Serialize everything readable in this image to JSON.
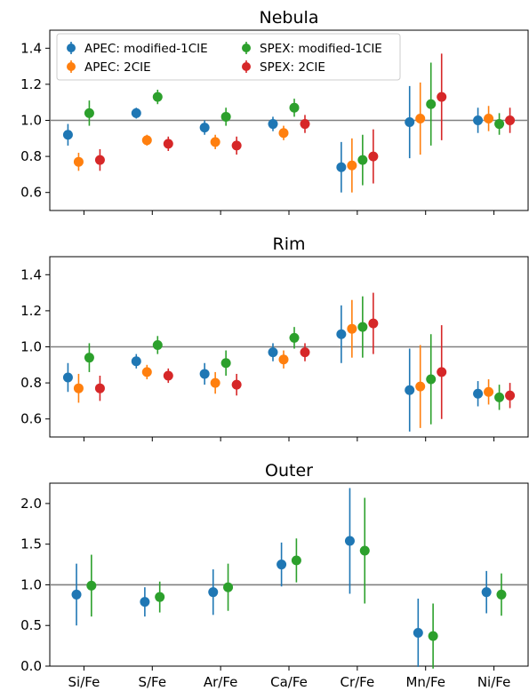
{
  "chart_data": [
    {
      "type": "scatter",
      "title": "Nebula",
      "xlabel": "",
      "ylabel": "",
      "categories": [
        "Si/Fe",
        "S/Fe",
        "Ar/Fe",
        "Ca/Fe",
        "Cr/Fe",
        "Mn/Fe",
        "Ni/Fe"
      ],
      "ylim": [
        0.5,
        1.5
      ],
      "yticks": [
        "0.6",
        "0.8",
        "1.0",
        "1.2",
        "1.4"
      ],
      "show_xticklabels": false,
      "reference_line": 1.0,
      "legend": "top-left",
      "series": [
        {
          "name": "APEC: modified-1CIE",
          "color": "#1f77b4",
          "values": [
            0.92,
            1.04,
            0.96,
            0.98,
            0.74,
            0.99,
            1.0
          ],
          "err": [
            0.06,
            0.03,
            0.04,
            0.04,
            0.14,
            0.2,
            0.07
          ]
        },
        {
          "name": "APEC: 2CIE",
          "color": "#ff7f0e",
          "values": [
            0.77,
            0.89,
            0.88,
            0.93,
            0.75,
            1.01,
            1.01
          ],
          "err": [
            0.05,
            0.03,
            0.04,
            0.04,
            0.15,
            0.2,
            0.07
          ]
        },
        {
          "name": "SPEX: modified-1CIE",
          "color": "#2ca02c",
          "values": [
            1.04,
            1.13,
            1.02,
            1.07,
            0.78,
            1.09,
            0.98
          ],
          "err": [
            0.07,
            0.04,
            0.05,
            0.05,
            0.14,
            0.23,
            0.06
          ]
        },
        {
          "name": "SPEX: 2CIE",
          "color": "#d62728",
          "values": [
            0.78,
            0.87,
            0.86,
            0.98,
            0.8,
            1.13,
            1.0
          ],
          "err": [
            0.06,
            0.04,
            0.05,
            0.05,
            0.15,
            0.24,
            0.07
          ]
        }
      ]
    },
    {
      "type": "scatter",
      "title": "Rim",
      "xlabel": "",
      "ylabel": "",
      "categories": [
        "Si/Fe",
        "S/Fe",
        "Ar/Fe",
        "Ca/Fe",
        "Cr/Fe",
        "Mn/Fe",
        "Ni/Fe"
      ],
      "ylim": [
        0.5,
        1.5
      ],
      "yticks": [
        "0.6",
        "0.8",
        "1.0",
        "1.2",
        "1.4"
      ],
      "show_xticklabels": false,
      "reference_line": 1.0,
      "series": [
        {
          "name": "APEC: modified-1CIE",
          "color": "#1f77b4",
          "values": [
            0.83,
            0.92,
            0.85,
            0.97,
            1.07,
            0.76,
            0.74
          ],
          "err": [
            0.08,
            0.04,
            0.06,
            0.05,
            0.16,
            0.23,
            0.07
          ]
        },
        {
          "name": "APEC: 2CIE",
          "color": "#ff7f0e",
          "values": [
            0.77,
            0.86,
            0.8,
            0.93,
            1.1,
            0.78,
            0.75
          ],
          "err": [
            0.08,
            0.04,
            0.06,
            0.05,
            0.16,
            0.23,
            0.07
          ]
        },
        {
          "name": "SPEX: modified-1CIE",
          "color": "#2ca02c",
          "values": [
            0.94,
            1.01,
            0.91,
            1.05,
            1.11,
            0.82,
            0.72
          ],
          "err": [
            0.08,
            0.05,
            0.07,
            0.06,
            0.17,
            0.25,
            0.07
          ]
        },
        {
          "name": "SPEX: 2CIE",
          "color": "#d62728",
          "values": [
            0.77,
            0.84,
            0.79,
            0.97,
            1.13,
            0.86,
            0.73
          ],
          "err": [
            0.07,
            0.04,
            0.06,
            0.05,
            0.17,
            0.26,
            0.07
          ]
        }
      ]
    },
    {
      "type": "scatter",
      "title": "Outer",
      "xlabel": "",
      "ylabel": "",
      "categories": [
        "Si/Fe",
        "S/Fe",
        "Ar/Fe",
        "Ca/Fe",
        "Cr/Fe",
        "Mn/Fe",
        "Ni/Fe"
      ],
      "ylim": [
        0.0,
        2.25
      ],
      "yticks": [
        "0.0",
        "0.5",
        "1.0",
        "1.5",
        "2.0"
      ],
      "show_xticklabels": true,
      "reference_line": 1.0,
      "series": [
        {
          "name": "APEC: modified-1CIE",
          "color": "#1f77b4",
          "values": [
            0.88,
            0.79,
            0.91,
            1.25,
            1.54,
            0.41,
            0.91
          ],
          "err": [
            0.38,
            0.18,
            0.28,
            0.27,
            0.65,
            0.42,
            0.26
          ]
        },
        {
          "name": "SPEX: modified-1CIE",
          "color": "#2ca02c",
          "values": [
            0.99,
            0.85,
            0.97,
            1.3,
            1.42,
            0.37,
            0.88
          ],
          "err": [
            0.38,
            0.19,
            0.29,
            0.27,
            0.65,
            0.4,
            0.26
          ]
        }
      ]
    }
  ]
}
